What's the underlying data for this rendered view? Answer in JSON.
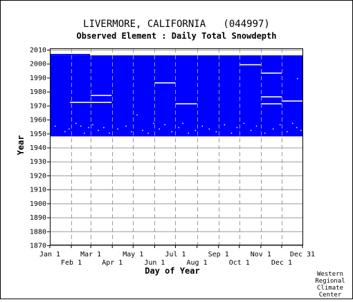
{
  "chart_data": {
    "type": "heatmap",
    "title": "LIVERMORE, CALIFORNIA   (044997)",
    "subtitle": "Observed Element : Daily Total Snowdepth",
    "xlabel": "Day of Year",
    "ylabel": "Year",
    "credit": [
      "Western",
      "Regional",
      "Climate",
      "Center"
    ],
    "xlim": [
      1,
      366
    ],
    "ylim": [
      1870,
      2011
    ],
    "x_ticks_upper": [
      {
        "label": "Jan 1",
        "day": 1
      },
      {
        "label": "Mar 1",
        "day": 60
      },
      {
        "label": "May 1",
        "day": 121
      },
      {
        "label": "Jul 1",
        "day": 182
      },
      {
        "label": "Sep 1",
        "day": 244
      },
      {
        "label": "Nov 1",
        "day": 305
      },
      {
        "label": "Dec 31",
        "day": 365
      }
    ],
    "x_ticks_lower": [
      {
        "label": "Feb 1",
        "day": 32
      },
      {
        "label": "Apr 1",
        "day": 91
      },
      {
        "label": "Jun 1",
        "day": 152
      },
      {
        "label": "Aug 1",
        "day": 213
      },
      {
        "label": "Oct 1",
        "day": 274
      },
      {
        "label": "Dec 1",
        "day": 335
      }
    ],
    "y_ticks": [
      1870,
      1880,
      1890,
      1900,
      1910,
      1920,
      1930,
      1940,
      1950,
      1960,
      1970,
      1980,
      1990,
      2000,
      2010
    ],
    "record_band": {
      "year_start": 1948,
      "year_end": 2005,
      "extended_to_2006_until_day": 59,
      "color": "#0000ff"
    },
    "missing_segments": [
      {
        "year": 1972,
        "day_start": 30,
        "day_end": 90
      },
      {
        "year": 1977,
        "day_start": 60,
        "day_end": 90
      },
      {
        "year": 1986,
        "day_start": 152,
        "day_end": 182
      },
      {
        "year": 1971,
        "day_start": 182,
        "day_end": 213
      },
      {
        "year": 1999,
        "day_start": 274,
        "day_end": 305
      },
      {
        "year": 1993,
        "day_start": 305,
        "day_end": 335
      },
      {
        "year": 1976,
        "day_start": 305,
        "day_end": 335
      },
      {
        "year": 1971,
        "day_start": 305,
        "day_end": 335
      },
      {
        "year": 1973,
        "day_start": 335,
        "day_end": 366
      }
    ],
    "missing_days": [
      {
        "year": 1955,
        "day": 8
      },
      {
        "year": 1951,
        "day": 22
      },
      {
        "year": 1953,
        "day": 28
      },
      {
        "year": 1957,
        "day": 38
      },
      {
        "year": 1955,
        "day": 45
      },
      {
        "year": 1950,
        "day": 50
      },
      {
        "year": 1954,
        "day": 56
      },
      {
        "year": 1956,
        "day": 62
      },
      {
        "year": 1952,
        "day": 70
      },
      {
        "year": 1954,
        "day": 78
      },
      {
        "year": 1950,
        "day": 86
      },
      {
        "year": 1953,
        "day": 98
      },
      {
        "year": 1955,
        "day": 110
      },
      {
        "year": 1951,
        "day": 118
      },
      {
        "year": 1963,
        "day": 126
      },
      {
        "year": 1952,
        "day": 134
      },
      {
        "year": 1950,
        "day": 142
      },
      {
        "year": 1957,
        "day": 150
      },
      {
        "year": 1953,
        "day": 158
      },
      {
        "year": 1956,
        "day": 166
      },
      {
        "year": 1951,
        "day": 176
      },
      {
        "year": 1954,
        "day": 186
      },
      {
        "year": 1957,
        "day": 192
      },
      {
        "year": 1950,
        "day": 200
      },
      {
        "year": 1952,
        "day": 210
      },
      {
        "year": 1955,
        "day": 220
      },
      {
        "year": 1953,
        "day": 230
      },
      {
        "year": 1951,
        "day": 240
      },
      {
        "year": 1956,
        "day": 252
      },
      {
        "year": 1950,
        "day": 262
      },
      {
        "year": 1954,
        "day": 270
      },
      {
        "year": 1957,
        "day": 280
      },
      {
        "year": 1952,
        "day": 290
      },
      {
        "year": 1955,
        "day": 298
      },
      {
        "year": 1950,
        "day": 310
      },
      {
        "year": 1953,
        "day": 322
      },
      {
        "year": 1956,
        "day": 332
      },
      {
        "year": 1951,
        "day": 342
      },
      {
        "year": 1957,
        "day": 350
      },
      {
        "year": 1954,
        "day": 356
      },
      {
        "year": 1989,
        "day": 357
      },
      {
        "year": 1952,
        "day": 362
      }
    ],
    "colors": {
      "data": "#0000ff",
      "missing": "#ffffff",
      "grid": "#999999",
      "axis": "#000000"
    }
  }
}
